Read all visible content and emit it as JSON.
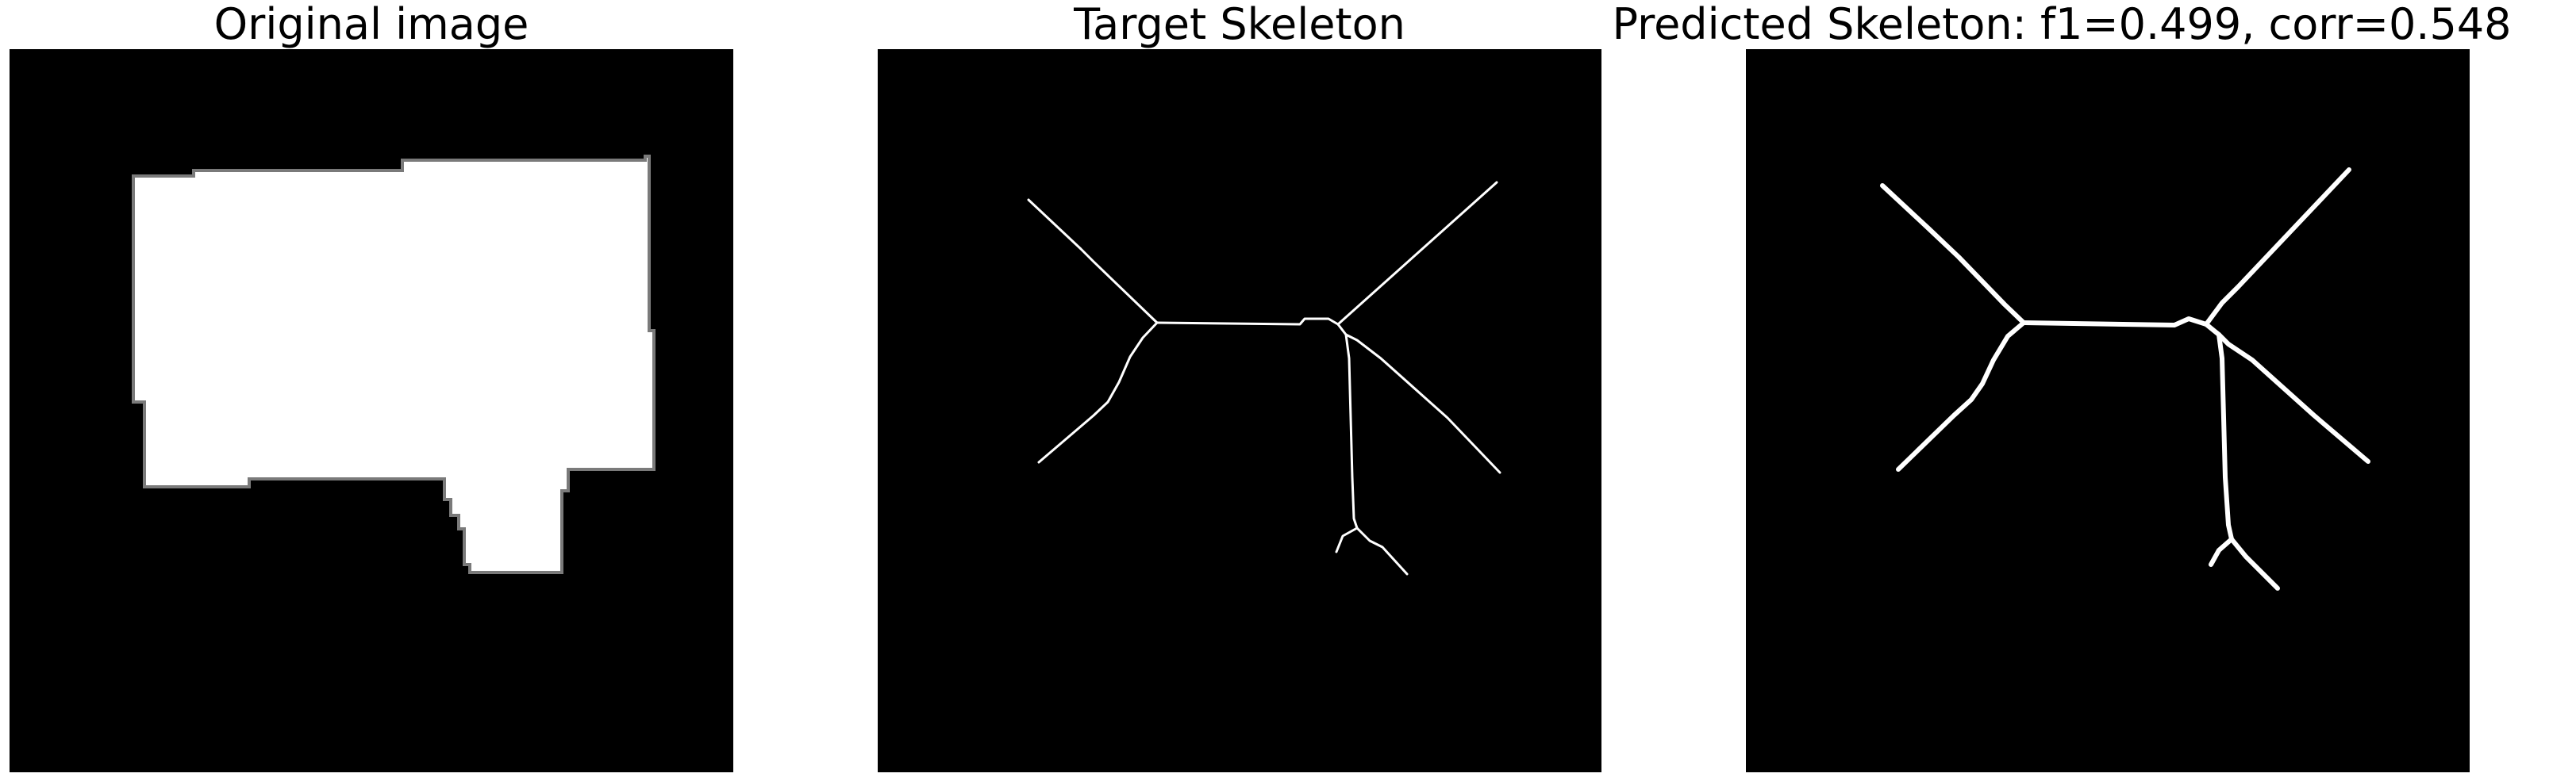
{
  "figure": {
    "panels": [
      {
        "title": "Original image",
        "content": "binary mask"
      },
      {
        "title": "Target Skeleton",
        "content": "skeleton"
      },
      {
        "title": "Predicted Skeleton: f1=0.499, corr=0.548",
        "content": "skeleton"
      }
    ],
    "colors": {
      "background": "#ffffff",
      "image_background": "#000000",
      "foreground": "#ffffff",
      "mask_edge": "#7a7a7a",
      "title_text": "#000000"
    }
  }
}
